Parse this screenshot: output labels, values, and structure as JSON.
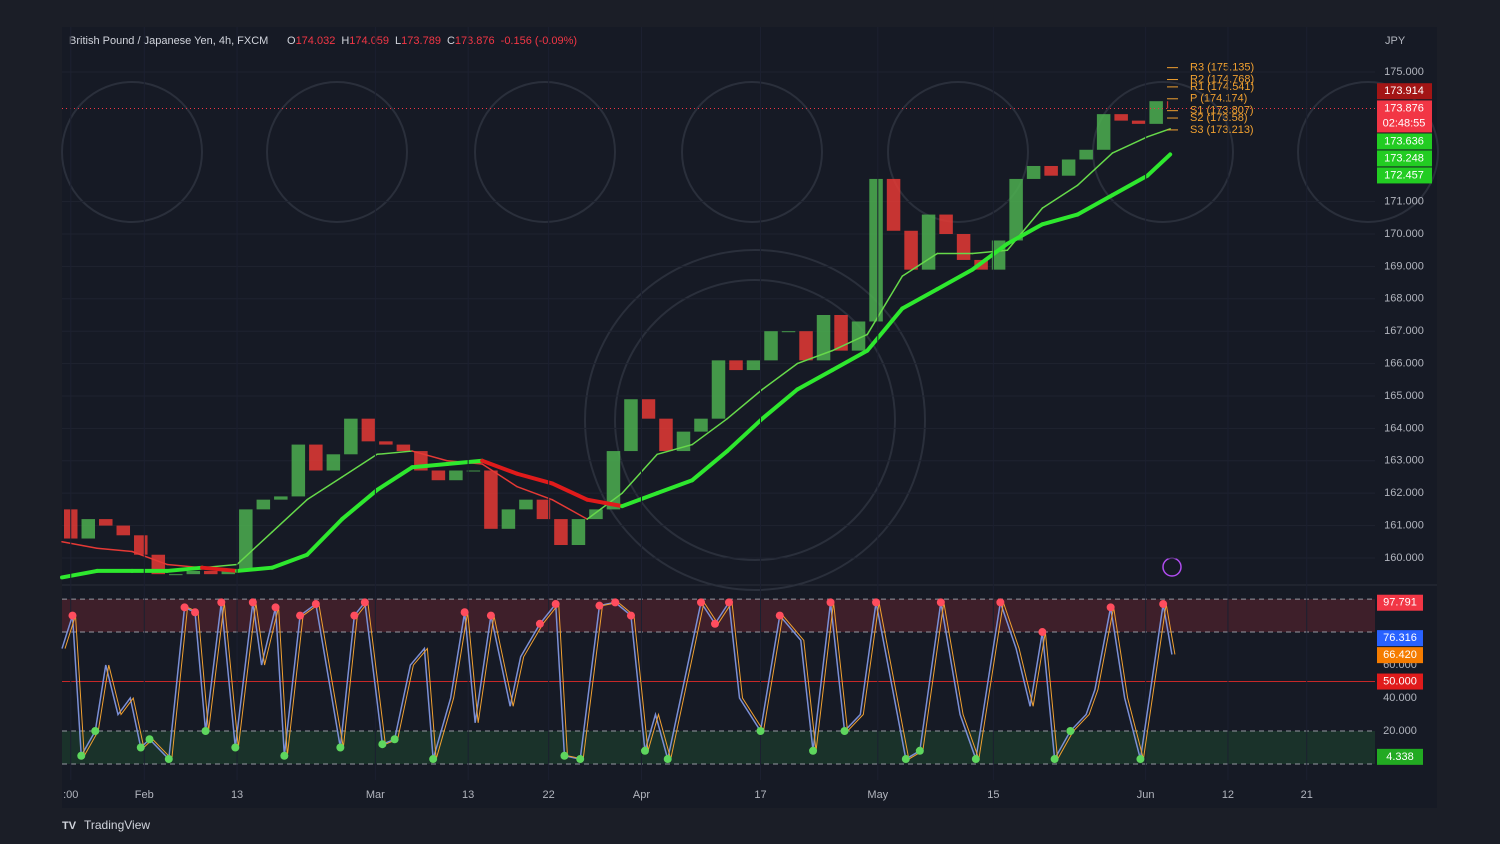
{
  "chart_data": [
    {
      "type": "candlestick",
      "title": "British Pound / Japanese Yen, 4h, FXCM",
      "ohlc": [
        {
          "key": "O",
          "value": "174.032"
        },
        {
          "key": "H",
          "value": "174.059"
        },
        {
          "key": "L",
          "value": "173.789"
        },
        {
          "key": "C",
          "value": "173.876"
        }
      ],
      "change": "-0.156 (-0.09%)",
      "unit": "JPY",
      "xlim": [
        0,
        750
      ],
      "ylim": [
        159.32,
        176.39
      ],
      "yticks": [
        {
          "value": 160,
          "label": "160.000"
        },
        {
          "value": 161,
          "label": "161.000"
        },
        {
          "value": 162,
          "label": "162.000"
        },
        {
          "value": 163,
          "label": "163.000"
        },
        {
          "value": 164,
          "label": "164.000"
        },
        {
          "value": 165,
          "label": "165.000"
        },
        {
          "value": 166,
          "label": "166.000"
        },
        {
          "value": 167,
          "label": "167.000"
        },
        {
          "value": 168,
          "label": "168.000"
        },
        {
          "value": 169,
          "label": "169.000"
        },
        {
          "value": 170,
          "label": "170.000"
        },
        {
          "value": 171,
          "label": "171.000"
        },
        {
          "value": 175,
          "label": "175.000"
        }
      ],
      "close": {
        "up_color": "#4caf50",
        "down_color": "#e53935",
        "x": [
          0,
          10,
          20,
          30,
          40,
          50,
          60,
          70,
          80,
          90,
          100,
          110,
          120,
          130,
          140,
          150,
          160,
          170,
          180,
          190,
          200,
          210,
          220,
          230,
          240,
          250,
          260,
          270,
          280,
          290,
          300,
          310,
          320,
          330,
          340,
          350,
          360,
          370,
          380,
          390,
          400,
          410,
          420,
          430,
          440,
          450,
          460,
          470,
          480,
          490,
          500,
          510,
          520,
          530,
          540,
          550,
          560,
          570,
          580,
          590,
          600,
          610,
          620,
          630,
          633
        ],
        "values": [
          161.5,
          160.6,
          161.2,
          161.0,
          160.7,
          160.1,
          159.5,
          159.5,
          159.6,
          159.5,
          159.6,
          161.5,
          161.8,
          161.9,
          163.5,
          162.7,
          163.2,
          164.3,
          163.6,
          163.5,
          163.3,
          162.7,
          162.4,
          162.7,
          162.7,
          160.9,
          161.5,
          161.8,
          161.2,
          160.4,
          161.2,
          161.5,
          163.3,
          164.9,
          164.3,
          163.3,
          163.9,
          164.3,
          166.1,
          165.8,
          166.1,
          167.0,
          167.0,
          166.1,
          167.5,
          166.4,
          167.3,
          171.7,
          170.1,
          168.9,
          170.6,
          170.0,
          169.2,
          168.9,
          169.8,
          171.7,
          172.1,
          171.8,
          172.3,
          172.6,
          173.7,
          173.5,
          173.4,
          174.1,
          173.876
        ]
      },
      "series": [
        {
          "color": "#66d94a",
          "down_color": "#e53935",
          "width": 1.5,
          "x": [
            0,
            20,
            40,
            60,
            80,
            100,
            120,
            140,
            160,
            180,
            200,
            220,
            240,
            260,
            280,
            300,
            320,
            340,
            360,
            380,
            400,
            420,
            440,
            460,
            480,
            500,
            520,
            540,
            560,
            580,
            600,
            620,
            633
          ],
          "values": [
            160.5,
            160.3,
            160.2,
            159.8,
            159.7,
            159.8,
            160.8,
            161.8,
            162.5,
            163.2,
            163.3,
            163.0,
            162.9,
            162.2,
            161.8,
            161.2,
            162.0,
            163.2,
            163.5,
            164.3,
            165.2,
            166.0,
            166.4,
            166.9,
            168.7,
            169.4,
            169.4,
            169.5,
            170.8,
            171.5,
            172.5,
            173.0,
            173.248
          ]
        },
        {
          "color": "#2ee82e",
          "down_color": "#e01b1b",
          "width": 4,
          "x": [
            0,
            20,
            40,
            60,
            80,
            100,
            120,
            140,
            160,
            180,
            200,
            220,
            240,
            260,
            280,
            300,
            320,
            340,
            360,
            380,
            400,
            420,
            440,
            460,
            480,
            500,
            520,
            540,
            560,
            580,
            600,
            620,
            633
          ],
          "values": [
            159.4,
            159.6,
            159.6,
            159.6,
            159.7,
            159.6,
            159.7,
            160.1,
            161.2,
            162.1,
            162.8,
            162.9,
            163.0,
            162.6,
            162.3,
            161.8,
            161.6,
            162.0,
            162.4,
            163.3,
            164.3,
            165.2,
            165.8,
            166.4,
            167.7,
            168.3,
            168.9,
            169.7,
            170.3,
            170.6,
            171.2,
            171.8,
            172.457
          ]
        }
      ],
      "pivots": [
        {
          "value": 175.135,
          "label": "R3 (175.135)"
        },
        {
          "value": 174.768,
          "label": "R2 (174.768)"
        },
        {
          "value": 174.541,
          "label": "R1 (174.541)"
        },
        {
          "value": 174.174,
          "label": "P (174.174)"
        },
        {
          "value": 173.807,
          "label": "S1 (173.807)"
        },
        {
          "value": 173.58,
          "label": "S2 (173.58)"
        },
        {
          "value": 173.213,
          "label": "S3 (173.213)"
        }
      ],
      "price_labels": [
        {
          "value": 173.914,
          "color": "#a31515"
        },
        {
          "value": 173.876,
          "color": "#f23645"
        },
        {
          "value": 173.636,
          "color": "#22cc22"
        },
        {
          "value": 173.248,
          "color": "#22cc22"
        },
        {
          "value": 172.457,
          "color": "#22cc22"
        }
      ],
      "countdown": "02:48:55"
    },
    {
      "type": "line",
      "xlim": [
        0,
        750
      ],
      "xticks": [
        {
          "value": 5,
          "label": ":00"
        },
        {
          "value": 47,
          "label": "Feb"
        },
        {
          "value": 100,
          "label": "13"
        },
        {
          "value": 179,
          "label": "Mar"
        },
        {
          "value": 232,
          "label": "13"
        },
        {
          "value": 278,
          "label": "22"
        },
        {
          "value": 331,
          "label": "Apr"
        },
        {
          "value": 399,
          "label": "17"
        },
        {
          "value": 466,
          "label": "May"
        },
        {
          "value": 532,
          "label": "15"
        },
        {
          "value": 619,
          "label": "Jun"
        },
        {
          "value": 666,
          "label": "12"
        },
        {
          "value": 711,
          "label": "21"
        }
      ],
      "ylim": [
        -9.7,
        105.5
      ],
      "yticks": [
        {
          "value": 20,
          "label": "20.000"
        },
        {
          "value": 40,
          "label": "40.000"
        },
        {
          "value": 60,
          "label": "60.000"
        }
      ],
      "levels": [
        100,
        80,
        20,
        0
      ],
      "midline": 50,
      "series": [
        {
          "color": "#7b8fd6",
          "up_dot": "#ff4d5e",
          "down_dot": "#5ed65e",
          "x": [
            0,
            6,
            11,
            19,
            25,
            32,
            39,
            45,
            50,
            61,
            70,
            76,
            82,
            91,
            99,
            109,
            114,
            122,
            127,
            136,
            145,
            159,
            167,
            173,
            183,
            190,
            199,
            207,
            212,
            222,
            230,
            236,
            245,
            256,
            262,
            273,
            282,
            287,
            296,
            307,
            316,
            325,
            333,
            339,
            346,
            365,
            373,
            381,
            387,
            399,
            410,
            422,
            429,
            439,
            447,
            456,
            465,
            482,
            490,
            502,
            513,
            522,
            536,
            545,
            553,
            560,
            567,
            576,
            585,
            590,
            599,
            607,
            616,
            629,
            634
          ],
          "values": [
            70,
            90,
            5,
            20,
            60,
            30,
            40,
            10,
            15,
            3,
            95,
            92,
            20,
            98,
            10,
            98,
            60,
            95,
            5,
            90,
            97,
            10,
            90,
            98,
            12,
            15,
            60,
            70,
            3,
            40,
            92,
            25,
            90,
            35,
            65,
            85,
            97,
            5,
            3,
            96,
            98,
            90,
            8,
            30,
            3,
            98,
            85,
            98,
            40,
            20,
            90,
            75,
            8,
            98,
            20,
            30,
            98,
            3,
            8,
            98,
            30,
            3,
            98,
            70,
            35,
            80,
            3,
            20,
            30,
            45,
            95,
            40,
            3,
            97,
            66.42
          ]
        }
      ],
      "value_labels": [
        {
          "value": 97.791,
          "color": "#f23645"
        },
        {
          "value": 76.316,
          "color": "#2962ff"
        },
        {
          "value": 66.42,
          "label": "66.420",
          "color": "#f57c00"
        },
        {
          "value": 50,
          "label": "50.000",
          "color": "#e01b1b"
        },
        {
          "value": 4.338,
          "color": "#22aa22"
        }
      ]
    }
  ],
  "footer": "TradingView"
}
